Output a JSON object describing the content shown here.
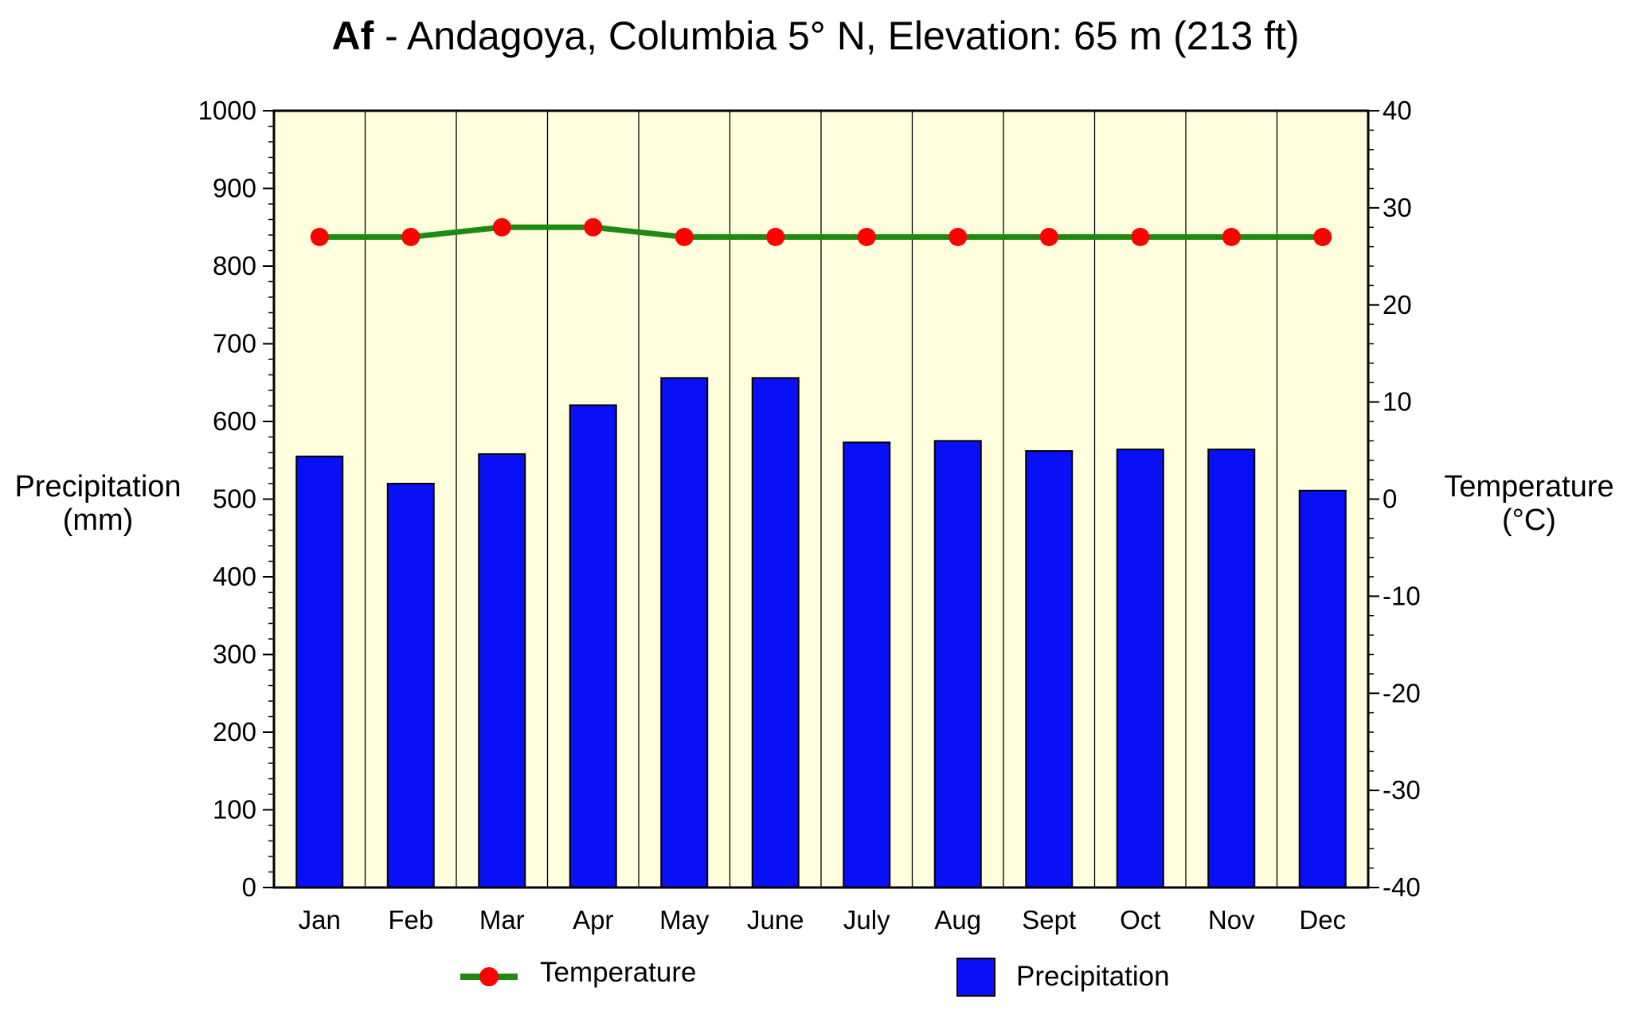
{
  "chart_data": {
    "type": "bar",
    "title_code": "Af",
    "title_rest": " - Andagoya, Columbia 5° N, Elevation: 65 m (213 ft)",
    "categories": [
      "Jan",
      "Feb",
      "Mar",
      "Apr",
      "May",
      "June",
      "July",
      "Aug",
      "Sept",
      "Oct",
      "Nov",
      "Dec"
    ],
    "series": [
      {
        "name": "Precipitation",
        "type": "bar",
        "axis": "left",
        "color": "#0a10f5",
        "values": [
          555,
          520,
          558,
          621,
          656,
          656,
          573,
          575,
          562,
          564,
          564,
          511
        ]
      },
      {
        "name": "Temperature",
        "type": "line",
        "axis": "right",
        "line_color": "#1f8a12",
        "marker_color": "#ff0000",
        "values": [
          27,
          27,
          28,
          28,
          27,
          27,
          27,
          27,
          27,
          27,
          27,
          27
        ]
      }
    ],
    "ylabel_left": [
      "Precipitation",
      "(mm)"
    ],
    "ylabel_right": [
      "Temperature",
      "(°C)"
    ],
    "ylim_left": [
      0,
      1000
    ],
    "yticks_left": [
      0,
      100,
      200,
      300,
      400,
      500,
      600,
      700,
      800,
      900,
      1000
    ],
    "ylim_right": [
      -40,
      40
    ],
    "yticks_right": [
      -40,
      -30,
      -20,
      -10,
      0,
      10,
      20,
      30,
      40
    ],
    "plot_background": "#ffffdd",
    "grid": "vertical lines between months",
    "legend_placement": "bottom"
  }
}
